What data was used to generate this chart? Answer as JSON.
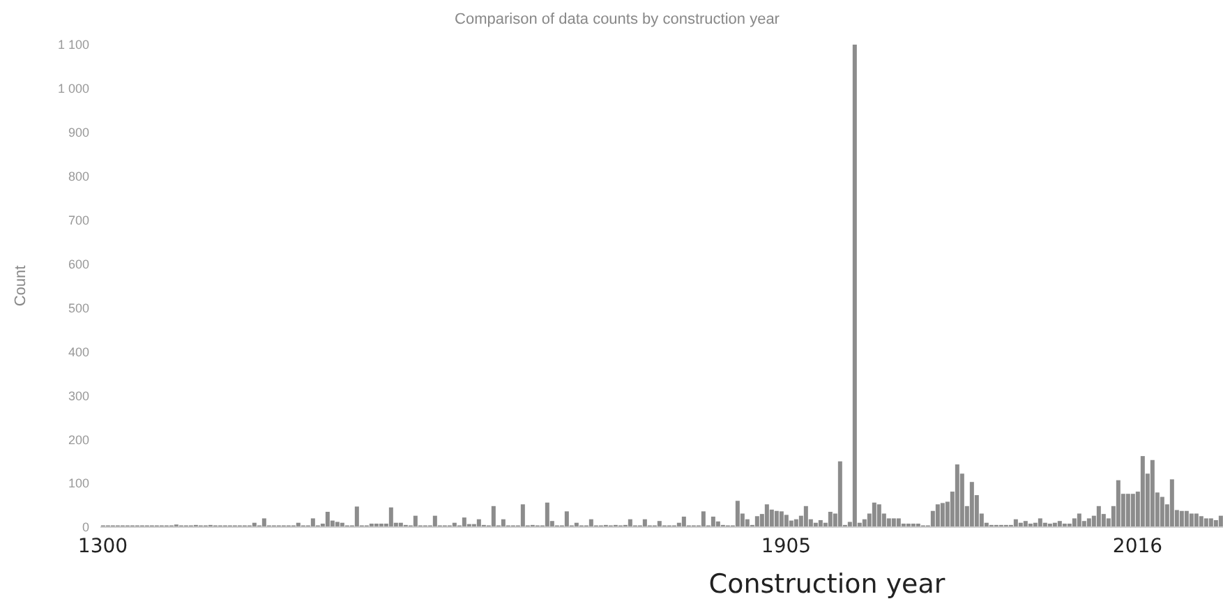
{
  "chart_data": {
    "type": "bar",
    "title": "Comparison of data counts by construction year",
    "xlabel": "Construction year",
    "ylabel": "Count",
    "categories": [
      "1300",
      null,
      null,
      null,
      null,
      null,
      null,
      null,
      null,
      null,
      null,
      null,
      null,
      null,
      null,
      null,
      null,
      null,
      null,
      null,
      null,
      null,
      null,
      null,
      null,
      null,
      null,
      null,
      null,
      null,
      null,
      null,
      null,
      null,
      null,
      null,
      null,
      null,
      null,
      null,
      null,
      null,
      null,
      null,
      null,
      null,
      null,
      null,
      null,
      null,
      null,
      null,
      null,
      null,
      null,
      null,
      null,
      null,
      null,
      null,
      null,
      null,
      null,
      null,
      null,
      null,
      null,
      null,
      null,
      null,
      null,
      null,
      null,
      null,
      null,
      null,
      null,
      null,
      null,
      null,
      null,
      null,
      null,
      null,
      null,
      null,
      null,
      null,
      null,
      null,
      null,
      null,
      null,
      null,
      null,
      null,
      null,
      null,
      null,
      null,
      null,
      null,
      null,
      null,
      null,
      null,
      null,
      null,
      null,
      null,
      null,
      null,
      null,
      null,
      null,
      null,
      null,
      null,
      null,
      null,
      null,
      null,
      null,
      null,
      null,
      null,
      null,
      null,
      null,
      null,
      null,
      null,
      null,
      null,
      null,
      null,
      null,
      null,
      null,
      null,
      "1905",
      null,
      null,
      null,
      null,
      null,
      null,
      null,
      null,
      null,
      null,
      null,
      null,
      null,
      null,
      null,
      null,
      null,
      null,
      null,
      null,
      null,
      null,
      null,
      null,
      null,
      null,
      null,
      null,
      null,
      null,
      null,
      null,
      null,
      null,
      null,
      null,
      null,
      null,
      null,
      null,
      null,
      null,
      null,
      null,
      null,
      null,
      null,
      null,
      null,
      null,
      null,
      null,
      null,
      null,
      null,
      null,
      null,
      null,
      null,
      null,
      null,
      null,
      null,
      null,
      null,
      null,
      null,
      null,
      null,
      null,
      null,
      "2016",
      null,
      null,
      null,
      null,
      null,
      null,
      null,
      null,
      null,
      null,
      null,
      null,
      null,
      null,
      null,
      null,
      null
    ],
    "values": [
      4,
      4,
      4,
      4,
      4,
      4,
      4,
      4,
      4,
      4,
      4,
      4,
      4,
      4,
      4,
      6,
      4,
      4,
      4,
      5,
      4,
      4,
      5,
      4,
      4,
      4,
      4,
      4,
      4,
      4,
      4,
      10,
      4,
      20,
      4,
      4,
      4,
      4,
      4,
      4,
      10,
      4,
      4,
      20,
      4,
      8,
      35,
      15,
      12,
      10,
      4,
      4,
      47,
      4,
      4,
      8,
      8,
      8,
      8,
      45,
      10,
      10,
      5,
      4,
      26,
      4,
      4,
      4,
      26,
      4,
      4,
      4,
      10,
      4,
      22,
      7,
      7,
      18,
      5,
      4,
      48,
      4,
      18,
      4,
      4,
      4,
      52,
      4,
      5,
      4,
      4,
      56,
      14,
      4,
      4,
      36,
      4,
      10,
      4,
      4,
      18,
      4,
      4,
      5,
      4,
      5,
      4,
      5,
      18,
      4,
      4,
      18,
      4,
      4,
      14,
      4,
      4,
      4,
      10,
      24,
      4,
      4,
      4,
      36,
      4,
      24,
      13,
      5,
      4,
      4,
      60,
      31,
      18,
      5,
      25,
      30,
      52,
      40,
      37,
      36,
      28,
      15,
      18,
      26,
      48,
      18,
      10,
      16,
      10,
      35,
      31,
      150,
      5,
      12,
      1100,
      10,
      18,
      31,
      56,
      52,
      31,
      20,
      20,
      20,
      8,
      8,
      8,
      8,
      4,
      4,
      37,
      52,
      55,
      58,
      81,
      143,
      122,
      48,
      103,
      73,
      31,
      10,
      5,
      5,
      5,
      5,
      5,
      18,
      10,
      14,
      8,
      10,
      20,
      10,
      8,
      10,
      14,
      8,
      8,
      20,
      31,
      14,
      20,
      26,
      48,
      30,
      20,
      48,
      107,
      76,
      76,
      76,
      81,
      162,
      122,
      153,
      79,
      69,
      52,
      109,
      39,
      37,
      37,
      31,
      31,
      25,
      20,
      20,
      16,
      26
    ],
    "color": "#8c8c8c",
    "ylim": [
      0,
      1100
    ],
    "yticks": [
      0,
      100,
      200,
      300,
      400,
      500,
      600,
      700,
      800,
      900,
      {
        "value": 1000,
        "label": "1 000"
      },
      {
        "value": 1100,
        "label": "1 100"
      }
    ]
  }
}
